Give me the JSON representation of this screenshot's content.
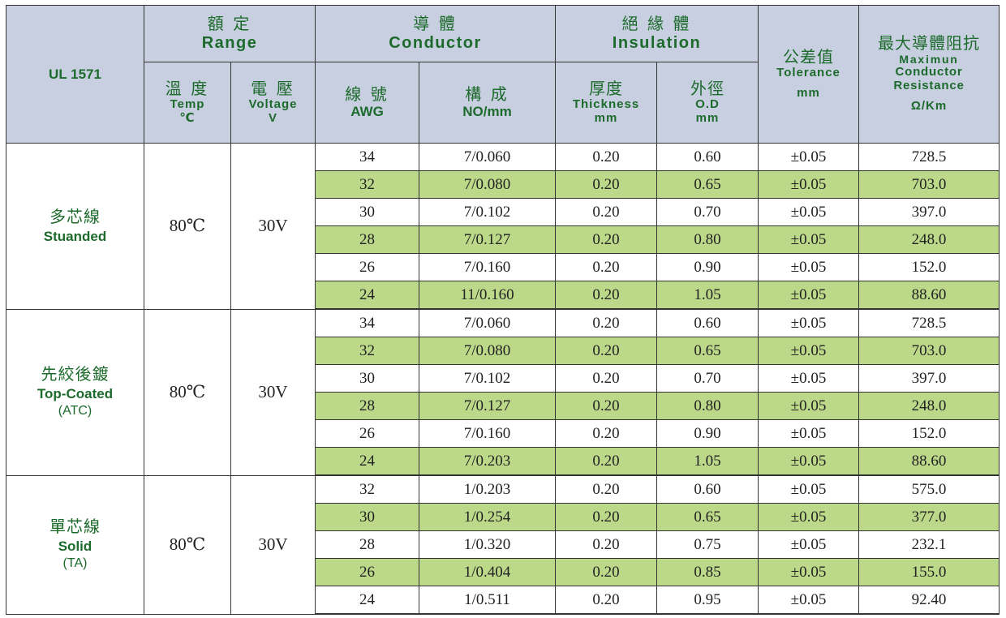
{
  "header": {
    "standard": "UL 1571",
    "range": {
      "zh": "額 定",
      "en": "Range"
    },
    "temp": {
      "zh": "溫 度",
      "en": "Temp",
      "unit": "℃"
    },
    "voltage": {
      "zh": "電 壓",
      "en": "Voltage",
      "unit": "V"
    },
    "conductor": {
      "zh": "導 體",
      "en": "Conductor"
    },
    "awg": {
      "zh": "線 號",
      "en": "AWG"
    },
    "construction": {
      "zh": "構 成",
      "en": "NO/mm"
    },
    "insulation": {
      "zh": "絕 緣 體",
      "en": "Insulation"
    },
    "thickness": {
      "zh": "厚度",
      "en": "Thickness",
      "unit": "mm"
    },
    "od": {
      "zh": "外徑",
      "en": "O.D",
      "unit": "mm"
    },
    "tolerance": {
      "zh": "公差值",
      "en": "Tolerance",
      "unit": "mm"
    },
    "resistance": {
      "zh": "最大導體阻抗",
      "line1": "Maximun",
      "line2": "Conductor",
      "line3": "Resistance",
      "unit": "Ω/Km"
    }
  },
  "groups": [
    {
      "name_zh": "多芯線",
      "name_en": "Stuanded",
      "name_en2": "",
      "temp": "80℃",
      "voltage": "30V",
      "rows": [
        {
          "awg": "34",
          "construction": "7/0.060",
          "thickness": "0.20",
          "od": "0.60",
          "tolerance": "±0.05",
          "resistance": "728.5"
        },
        {
          "awg": "32",
          "construction": "7/0.080",
          "thickness": "0.20",
          "od": "0.65",
          "tolerance": "±0.05",
          "resistance": "703.0"
        },
        {
          "awg": "30",
          "construction": "7/0.102",
          "thickness": "0.20",
          "od": "0.70",
          "tolerance": "±0.05",
          "resistance": "397.0"
        },
        {
          "awg": "28",
          "construction": "7/0.127",
          "thickness": "0.20",
          "od": "0.80",
          "tolerance": "±0.05",
          "resistance": "248.0"
        },
        {
          "awg": "26",
          "construction": "7/0.160",
          "thickness": "0.20",
          "od": "0.90",
          "tolerance": "±0.05",
          "resistance": "152.0"
        },
        {
          "awg": "24",
          "construction": "11/0.160",
          "thickness": "0.20",
          "od": "1.05",
          "tolerance": "±0.05",
          "resistance": "88.60"
        }
      ]
    },
    {
      "name_zh": "先絞後鍍",
      "name_en": "Top-Coated",
      "name_en2": "(ATC)",
      "temp": "80℃",
      "voltage": "30V",
      "rows": [
        {
          "awg": "34",
          "construction": "7/0.060",
          "thickness": "0.20",
          "od": "0.60",
          "tolerance": "±0.05",
          "resistance": "728.5"
        },
        {
          "awg": "32",
          "construction": "7/0.080",
          "thickness": "0.20",
          "od": "0.65",
          "tolerance": "±0.05",
          "resistance": "703.0"
        },
        {
          "awg": "30",
          "construction": "7/0.102",
          "thickness": "0.20",
          "od": "0.70",
          "tolerance": "±0.05",
          "resistance": "397.0"
        },
        {
          "awg": "28",
          "construction": "7/0.127",
          "thickness": "0.20",
          "od": "0.80",
          "tolerance": "±0.05",
          "resistance": "248.0"
        },
        {
          "awg": "26",
          "construction": "7/0.160",
          "thickness": "0.20",
          "od": "0.90",
          "tolerance": "±0.05",
          "resistance": "152.0"
        },
        {
          "awg": "24",
          "construction": "7/0.203",
          "thickness": "0.20",
          "od": "1.05",
          "tolerance": "±0.05",
          "resistance": "88.60"
        }
      ]
    },
    {
      "name_zh": "單芯線",
      "name_en": "Solid",
      "name_en2": "(TA)",
      "temp": "80℃",
      "voltage": "30V",
      "rows": [
        {
          "awg": "32",
          "construction": "1/0.203",
          "thickness": "0.20",
          "od": "0.60",
          "tolerance": "±0.05",
          "resistance": "575.0"
        },
        {
          "awg": "30",
          "construction": "1/0.254",
          "thickness": "0.20",
          "od": "0.65",
          "tolerance": "±0.05",
          "resistance": "377.0"
        },
        {
          "awg": "28",
          "construction": "1/0.320",
          "thickness": "0.20",
          "od": "0.75",
          "tolerance": "±0.05",
          "resistance": "232.1"
        },
        {
          "awg": "26",
          "construction": "1/0.404",
          "thickness": "0.20",
          "od": "0.85",
          "tolerance": "±0.05",
          "resistance": "155.0"
        },
        {
          "awg": "24",
          "construction": "1/0.511",
          "thickness": "0.20",
          "od": "0.95",
          "tolerance": "±0.05",
          "resistance": "92.40"
        }
      ]
    }
  ]
}
